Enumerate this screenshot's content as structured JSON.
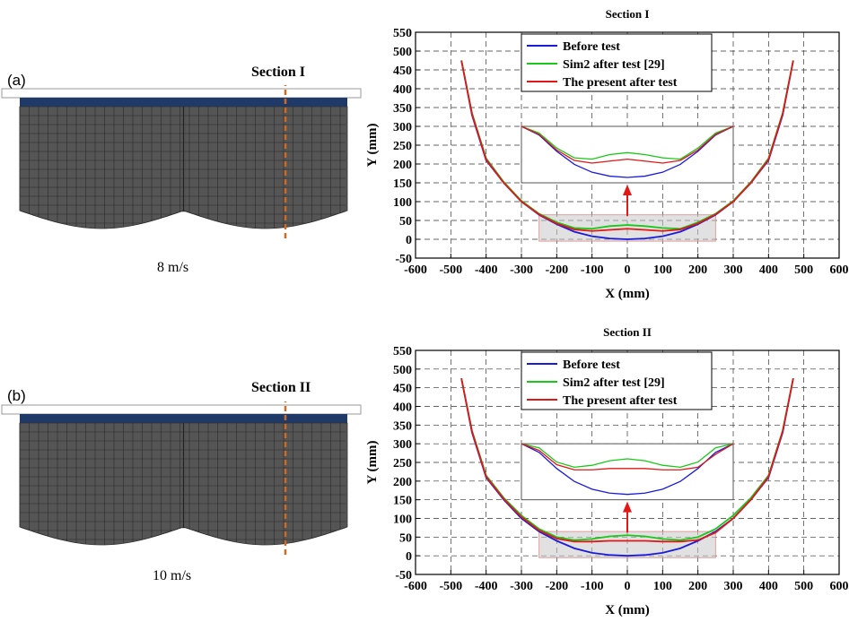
{
  "panels": [
    {
      "label": "(a)",
      "section": "Section I",
      "speed": "8 m/s"
    },
    {
      "label": "(b)",
      "section": "Section II",
      "speed": "10 m/s"
    }
  ],
  "colors": {
    "before": "#1a1adc",
    "sim2": "#19c819",
    "present": "#e01818",
    "mesh_body": "#555555",
    "mesh_top": "#1f3a68",
    "section_line": "#d2691e"
  },
  "chart_data": [
    {
      "type": "line",
      "title": "Section I",
      "xlabel": "X (mm)",
      "ylabel": "Y (mm)",
      "xlim": [
        -600,
        600
      ],
      "ylim": [
        -50,
        550
      ],
      "xticks": [
        -600,
        -500,
        -400,
        -300,
        -200,
        -100,
        0,
        100,
        200,
        300,
        400,
        500,
        600
      ],
      "yticks": [
        -50,
        0,
        50,
        100,
        150,
        200,
        250,
        300,
        350,
        400,
        450,
        500,
        550
      ],
      "grid": true,
      "legend_position": "top-center",
      "series": [
        {
          "name": "Before test",
          "x": [
            -470,
            -440,
            -400,
            -350,
            -300,
            -250,
            -200,
            -150,
            -100,
            -50,
            0,
            50,
            100,
            150,
            200,
            250,
            300,
            350,
            400,
            440,
            470
          ],
          "y": [
            475,
            330,
            210,
            150,
            100,
            65,
            40,
            20,
            8,
            2,
            0,
            2,
            8,
            20,
            40,
            65,
            100,
            150,
            210,
            330,
            475
          ]
        },
        {
          "name": "Sim2 after test [29]",
          "x": [
            -470,
            -440,
            -400,
            -350,
            -300,
            -250,
            -200,
            -150,
            -100,
            -50,
            0,
            50,
            100,
            150,
            200,
            250,
            300,
            350,
            400,
            440,
            470
          ],
          "y": [
            475,
            335,
            215,
            152,
            102,
            68,
            45,
            30,
            28,
            35,
            38,
            35,
            30,
            28,
            45,
            68,
            102,
            152,
            215,
            335,
            475
          ]
        },
        {
          "name": "The present after test",
          "x": [
            -470,
            -440,
            -400,
            -350,
            -300,
            -250,
            -200,
            -150,
            -100,
            -50,
            0,
            50,
            100,
            150,
            200,
            250,
            300,
            350,
            400,
            440,
            470
          ],
          "y": [
            475,
            333,
            212,
            150,
            100,
            66,
            42,
            26,
            22,
            25,
            28,
            25,
            22,
            26,
            42,
            66,
            100,
            150,
            212,
            333,
            475
          ]
        }
      ]
    },
    {
      "type": "line",
      "title": "Section II",
      "xlabel": "X (mm)",
      "ylabel": "Y (mm)",
      "xlim": [
        -600,
        600
      ],
      "ylim": [
        -50,
        550
      ],
      "xticks": [
        -600,
        -500,
        -400,
        -300,
        -200,
        -100,
        0,
        100,
        200,
        300,
        400,
        500,
        600
      ],
      "yticks": [
        -50,
        0,
        50,
        100,
        150,
        200,
        250,
        300,
        350,
        400,
        450,
        500,
        550
      ],
      "grid": true,
      "legend_position": "top-center",
      "series": [
        {
          "name": "Before test",
          "x": [
            -470,
            -440,
            -400,
            -350,
            -300,
            -250,
            -200,
            -150,
            -100,
            -50,
            0,
            50,
            100,
            150,
            200,
            250,
            300,
            350,
            400,
            440,
            470
          ],
          "y": [
            475,
            330,
            210,
            150,
            100,
            65,
            40,
            20,
            8,
            2,
            0,
            2,
            8,
            20,
            40,
            65,
            100,
            150,
            210,
            330,
            475
          ]
        },
        {
          "name": "Sim2 after test [29]",
          "x": [
            -470,
            -440,
            -400,
            -350,
            -300,
            -250,
            -200,
            -150,
            -100,
            -50,
            0,
            50,
            100,
            150,
            200,
            250,
            300,
            350,
            400,
            440,
            470
          ],
          "y": [
            475,
            335,
            215,
            155,
            108,
            72,
            50,
            42,
            45,
            52,
            55,
            52,
            45,
            42,
            50,
            72,
            108,
            155,
            215,
            335,
            475
          ]
        },
        {
          "name": "The present after test",
          "x": [
            -470,
            -440,
            -400,
            -350,
            -300,
            -250,
            -200,
            -150,
            -100,
            -50,
            0,
            50,
            100,
            150,
            200,
            250,
            300,
            350,
            400,
            440,
            470
          ],
          "y": [
            475,
            333,
            212,
            152,
            104,
            68,
            46,
            38,
            38,
            40,
            40,
            40,
            38,
            38,
            42,
            62,
            100,
            150,
            212,
            333,
            475
          ]
        }
      ]
    }
  ]
}
